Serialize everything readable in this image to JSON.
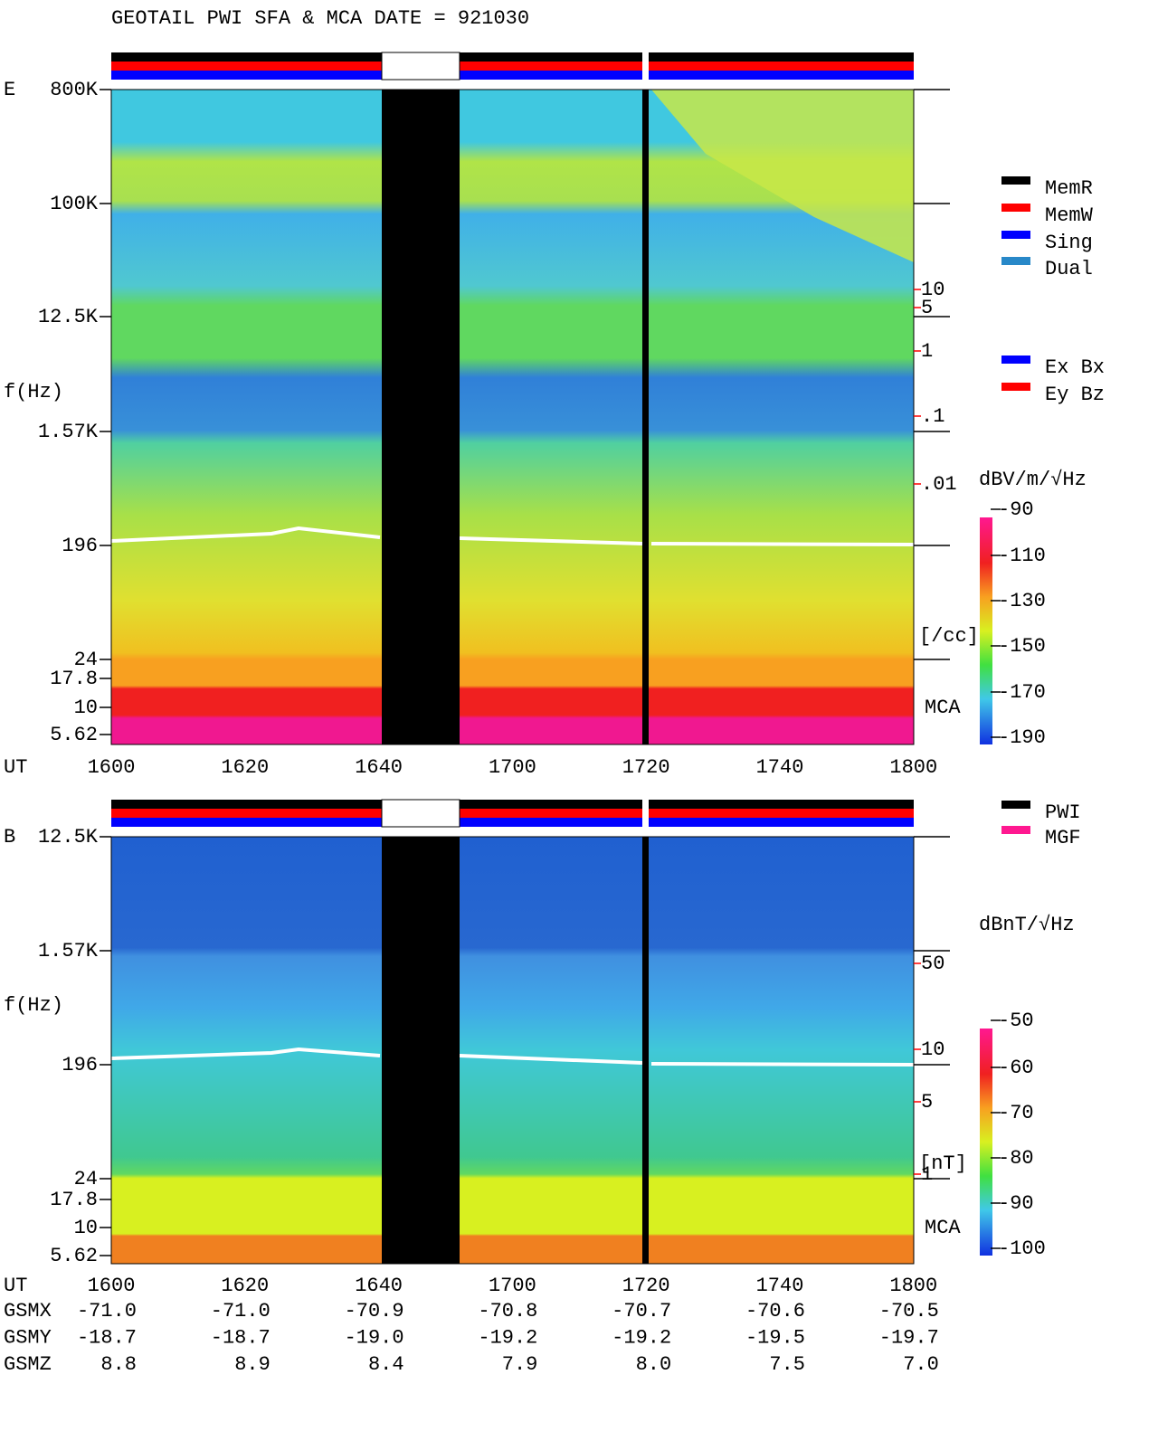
{
  "header": {
    "title": "GEOTAIL  PWI SFA & MCA   DATE = 921030"
  },
  "panel_e": {
    "label": "E",
    "y_axis_label": "f(Hz)",
    "y_ticks": [
      "800K",
      "100K",
      "12.5K",
      "1.57K",
      "196",
      "24",
      "17.8",
      "10",
      "5.62"
    ],
    "x_axis_label": "UT",
    "x_ticks": [
      "1600",
      "1620",
      "1640",
      "1700",
      "1720",
      "1740",
      "1800"
    ],
    "right_ticks": [
      "10",
      "5",
      "1",
      ".1",
      ".01"
    ],
    "right_unit": "[/cc]",
    "mca": "MCA",
    "colorbar_unit": "dBV/m/√Hz",
    "colorbar_ticks": [
      "-90",
      "-110",
      "-130",
      "-150",
      "-170",
      "-190"
    ],
    "legend_modes": [
      "MemR",
      "MemW",
      "Sing",
      "Dual"
    ],
    "legend_components": [
      "Ex Bx",
      "Ey Bz"
    ]
  },
  "panel_b": {
    "label": "B",
    "y_axis_label": "f(Hz)",
    "y_ticks": [
      "12.5K",
      "1.57K",
      "196",
      "24",
      "17.8",
      "10",
      "5.62"
    ],
    "x_axis_label": "UT",
    "x_ticks": [
      "1600",
      "1620",
      "1640",
      "1700",
      "1720",
      "1740",
      "1800"
    ],
    "right_ticks": [
      "50",
      "10",
      "5",
      "1"
    ],
    "right_unit": "[nT]",
    "mca": "MCA",
    "colorbar_unit": "dBnT/√Hz",
    "colorbar_ticks": [
      "-50",
      "-60",
      "-70",
      "-80",
      "-90",
      "-100"
    ],
    "legend_instruments": [
      "PWI",
      "MGF"
    ]
  },
  "orbit": {
    "rows": [
      {
        "label": "GSMX",
        "values": [
          "-71.0",
          "-71.0",
          "-70.9",
          "-70.8",
          "-70.7",
          "-70.6",
          "-70.5"
        ]
      },
      {
        "label": "GSMY",
        "values": [
          "-18.7",
          "-18.7",
          "-19.0",
          "-19.2",
          "-19.2",
          "-19.5",
          "-19.7"
        ]
      },
      {
        "label": "GSMZ",
        "values": [
          "8.8",
          "8.9",
          "8.4",
          "7.9",
          "8.0",
          "7.5",
          "7.0"
        ]
      }
    ]
  }
}
